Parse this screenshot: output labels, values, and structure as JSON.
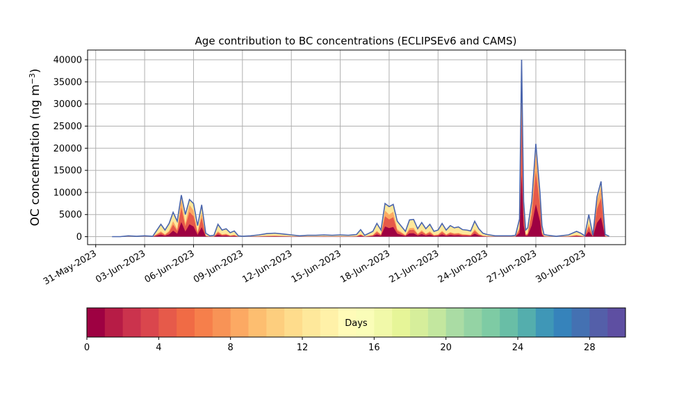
{
  "chart_data": {
    "type": "area",
    "title": "Age contribution to BC concentrations (ECLIPSEv6 and CAMS)",
    "ylabel": "OC concentration (ng m$^{-3}$)",
    "ylabel_main": "OC concentration (ng m",
    "ylabel_sup": "−3",
    "ylabel_close": ")",
    "xlabel": "",
    "ylim": [
      -1800,
      42200
    ],
    "xlim": [
      "2023-05-30T12:00",
      "2023-07-02T12:00"
    ],
    "grid": true,
    "x_ticks": [
      "2023-05-31",
      "2023-06-03",
      "2023-06-06",
      "2023-06-09",
      "2023-06-12",
      "2023-06-15",
      "2023-06-18",
      "2023-06-21",
      "2023-06-24",
      "2023-06-27",
      "2023-06-30"
    ],
    "x_tick_labels": [
      "31-May-2023",
      "03-Jun-2023",
      "06-Jun-2023",
      "09-Jun-2023",
      "12-Jun-2023",
      "15-Jun-2023",
      "18-Jun-2023",
      "21-Jun-2023",
      "24-Jun-2023",
      "27-Jun-2023",
      "30-Jun-2023"
    ],
    "y_ticks": [
      0,
      5000,
      10000,
      15000,
      20000,
      25000,
      30000,
      35000,
      40000
    ],
    "y_tick_labels": [
      "0",
      "5000",
      "10000",
      "15000",
      "20000",
      "25000",
      "30000",
      "35000",
      "40000"
    ],
    "series_total": {
      "x": [
        "2023-06-01T00:00",
        "2023-06-01T12:00",
        "2023-06-02T00:00",
        "2023-06-02T12:00",
        "2023-06-03T00:00",
        "2023-06-03T12:00",
        "2023-06-04T00:00",
        "2023-06-04T06:00",
        "2023-06-04T12:00",
        "2023-06-04T18:00",
        "2023-06-05T00:00",
        "2023-06-05T06:00",
        "2023-06-05T12:00",
        "2023-06-05T18:00",
        "2023-06-06T00:00",
        "2023-06-06T06:00",
        "2023-06-06T12:00",
        "2023-06-06T18:00",
        "2023-06-07T00:00",
        "2023-06-07T06:00",
        "2023-06-07T12:00",
        "2023-06-07T18:00",
        "2023-06-08T00:00",
        "2023-06-08T06:00",
        "2023-06-08T12:00",
        "2023-06-08T18:00",
        "2023-06-09T00:00",
        "2023-06-09T12:00",
        "2023-06-10T00:00",
        "2023-06-10T12:00",
        "2023-06-11T00:00",
        "2023-06-11T12:00",
        "2023-06-12T00:00",
        "2023-06-12T12:00",
        "2023-06-13T00:00",
        "2023-06-13T12:00",
        "2023-06-14T00:00",
        "2023-06-14T12:00",
        "2023-06-15T00:00",
        "2023-06-15T12:00",
        "2023-06-16T00:00",
        "2023-06-16T06:00",
        "2023-06-16T12:00",
        "2023-06-17T00:00",
        "2023-06-17T06:00",
        "2023-06-17T12:00",
        "2023-06-17T18:00",
        "2023-06-18T00:00",
        "2023-06-18T06:00",
        "2023-06-18T12:00",
        "2023-06-19T00:00",
        "2023-06-19T06:00",
        "2023-06-19T12:00",
        "2023-06-19T18:00",
        "2023-06-20T00:00",
        "2023-06-20T06:00",
        "2023-06-20T12:00",
        "2023-06-20T18:00",
        "2023-06-21T00:00",
        "2023-06-21T06:00",
        "2023-06-21T12:00",
        "2023-06-21T18:00",
        "2023-06-22T00:00",
        "2023-06-22T06:00",
        "2023-06-22T12:00",
        "2023-06-22T18:00",
        "2023-06-23T00:00",
        "2023-06-23T06:00",
        "2023-06-23T12:00",
        "2023-06-23T18:00",
        "2023-06-24T00:00",
        "2023-06-24T12:00",
        "2023-06-25T00:00",
        "2023-06-25T12:00",
        "2023-06-25T18:00",
        "2023-06-26T00:00",
        "2023-06-26T03:00",
        "2023-06-26T06:00",
        "2023-06-26T09:00",
        "2023-06-26T12:00",
        "2023-06-26T18:00",
        "2023-06-27T00:00",
        "2023-06-27T06:00",
        "2023-06-27T09:00",
        "2023-06-27T12:00",
        "2023-06-27T18:00",
        "2023-06-28T00:00",
        "2023-06-28T06:00",
        "2023-06-28T12:00",
        "2023-06-29T00:00",
        "2023-06-29T12:00",
        "2023-06-29T18:00",
        "2023-06-30T00:00",
        "2023-06-30T06:00",
        "2023-06-30T12:00",
        "2023-06-30T18:00",
        "2023-07-01T00:00",
        "2023-07-01T06:00",
        "2023-07-01T12:00"
      ],
      "y": [
        0,
        0,
        200,
        100,
        200,
        100,
        2800,
        1500,
        3000,
        5500,
        3500,
        9400,
        5000,
        8400,
        7500,
        2500,
        7200,
        800,
        200,
        300,
        2800,
        1500,
        1800,
        900,
        1300,
        200,
        100,
        200,
        400,
        700,
        800,
        600,
        400,
        200,
        300,
        300,
        400,
        300,
        400,
        300,
        500,
        1600,
        300,
        1200,
        3000,
        1500,
        7500,
        6800,
        7300,
        3500,
        1200,
        3800,
        3900,
        1800,
        3200,
        1800,
        2800,
        1200,
        1500,
        3000,
        1500,
        2500,
        2000,
        2200,
        1600,
        1500,
        1300,
        3500,
        1800,
        800,
        500,
        200,
        200,
        200,
        300,
        4000,
        40000,
        8000,
        1500,
        2000,
        8000,
        21000,
        10000,
        2500,
        500,
        300,
        200,
        100,
        200,
        400,
        1200,
        800,
        200,
        5000,
        300,
        9000,
        12500,
        500,
        100
      ]
    },
    "colorbar": {
      "label": "Days",
      "min": 0,
      "max": 30,
      "ticks": [
        0,
        4,
        8,
        12,
        16,
        20,
        24,
        28
      ],
      "tick_labels": [
        "0",
        "4",
        "8",
        "12",
        "16",
        "20",
        "24",
        "28"
      ],
      "colors": [
        "#9e0142",
        "#b71c46",
        "#cb334d",
        "#da464d",
        "#e65a4a",
        "#f06b45",
        "#f67f4b",
        "#f89356",
        "#fca963",
        "#fdbe70",
        "#fdce7e",
        "#fedc8c",
        "#fee89b",
        "#fff1a8",
        "#fffbb8",
        "#fafdb8",
        "#f1f9a9",
        "#e6f598",
        "#d6ee9b",
        "#c3e79f",
        "#aadca4",
        "#94d3a4",
        "#7ecba4",
        "#69bea6",
        "#54aead",
        "#3f97b7",
        "#3683bb",
        "#4471b2",
        "#545fa9",
        "#5e4fa2"
      ]
    },
    "fill_layers": [
      {
        "age_bin": 0,
        "color": "#9e0142",
        "weights": "recent"
      },
      {
        "age_bin": 4,
        "color": "#e65a4a",
        "weights": "mid"
      },
      {
        "age_bin": 8,
        "color": "#fca963",
        "weights": "older"
      },
      {
        "age_bin": 12,
        "color": "#fee89b",
        "weights": "old"
      },
      {
        "age_bin": 28,
        "color": "#4471b2",
        "weights": "outline"
      }
    ]
  }
}
